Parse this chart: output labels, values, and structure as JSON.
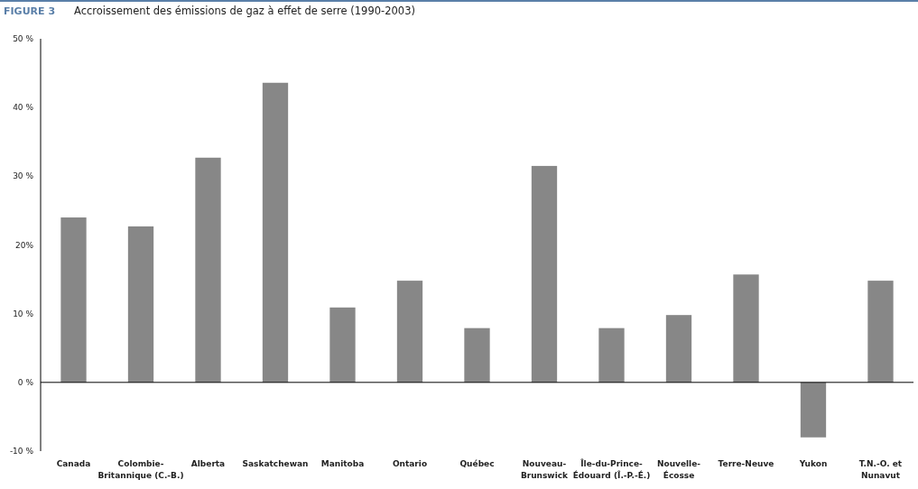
{
  "chart_data": {
    "type": "bar",
    "subtitle": "FIGURE 3",
    "title": "Accroissement des émissions de gaz à effet de serre (1990-2003)",
    "categories": [
      "Canada",
      "Colombie-Britannique (C.-B.)",
      "Alberta",
      "Saskatchewan",
      "Manitoba",
      "Ontario",
      "Québec",
      "Nouveau-Brunswick",
      "Île-du-Prince-Édouard (Î.-P.-É.)",
      "Nouvelle-Écosse",
      "Terre-Neuve",
      "Yukon",
      "T.N.-O. et Nunavut"
    ],
    "values": [
      24,
      22.7,
      32.7,
      43.6,
      10.9,
      14.8,
      7.9,
      31.5,
      7.9,
      9.8,
      15.7,
      -8,
      14.8
    ],
    "color": "#878787",
    "ylim": [
      -10,
      50
    ],
    "yticks": [
      {
        "value": -10,
        "label": "-10 %"
      },
      {
        "value": 0,
        "label": "0 %"
      },
      {
        "value": 10,
        "label": "10 %"
      },
      {
        "value": 20,
        "label": "20%"
      },
      {
        "value": 30,
        "label": "30 %"
      },
      {
        "value": 40,
        "label": "40 %"
      },
      {
        "value": 50,
        "label": "50 %"
      }
    ]
  }
}
